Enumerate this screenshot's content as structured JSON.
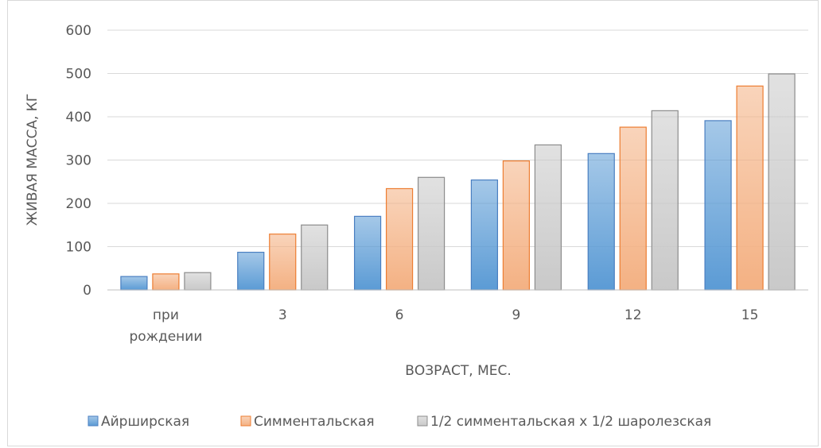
{
  "chart_data": {
    "type": "bar",
    "title": "",
    "xlabel": "ВОЗРАСТ, МЕС.",
    "ylabel": "ЖИВАЯ МАССА, КГ",
    "categories": [
      "при рождении",
      "3",
      "6",
      "9",
      "12",
      "15"
    ],
    "ylim": [
      0,
      600
    ],
    "yticks": [
      0,
      100,
      200,
      300,
      400,
      500,
      600
    ],
    "grid": true,
    "legend_position": "bottom",
    "series": [
      {
        "name": "Айрширская",
        "values": [
          31,
          87,
          170,
          254,
          315,
          391
        ],
        "color": "#5b9bd5",
        "border": "#4a7fc1"
      },
      {
        "name": "Симментальская",
        "values": [
          37,
          129,
          234,
          298,
          376,
          471
        ],
        "color": "#f4b183",
        "border": "#ed7d31"
      },
      {
        "name": "1/2 симментальская х 1/2 шаролезская",
        "values": [
          40,
          150,
          260,
          335,
          414,
          499
        ],
        "color": "#c9c9c9",
        "border": "#8c8c8c"
      }
    ]
  }
}
